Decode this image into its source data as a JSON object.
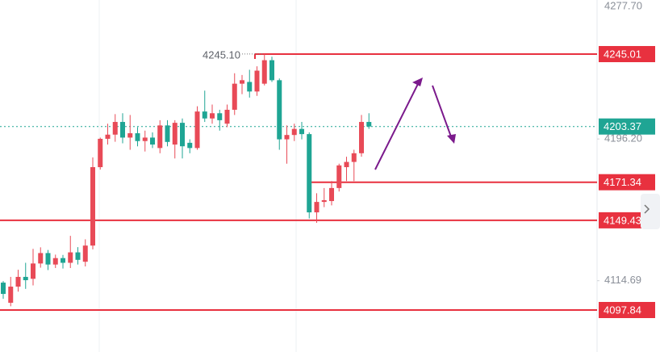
{
  "chart_data": {
    "type": "candlestick",
    "series": [
      {
        "up_color": "#e84a57",
        "down_color": "#1fa594",
        "open": [
          4113.6,
          4102.0,
          4111.3,
          4116.9,
          4115.8,
          4124.6,
          4130.6,
          4124.0,
          4127.7,
          4125.0,
          4131.0,
          4125.6,
          4134.9,
          4180.0,
          4196.3,
          4198.7,
          4206.0,
          4197.0,
          4199.5,
          4195.0,
          4197.0,
          4191.0,
          4204.0,
          4193.0,
          4205.5,
          4194.0,
          4191.0,
          4212.0,
          4208.0,
          4211.0,
          4205.0,
          4213.0,
          4228.0,
          4229.0,
          4223.5,
          4228.0,
          4241.5,
          4230.0,
          4196.0,
          4198.5,
          4202.0,
          4199.0,
          4154.0,
          4160.0,
          4160.5,
          4168.0,
          4180.0,
          4183.0,
          4188.0,
          4206.0
        ],
        "high": [
          4114.5,
          4116.9,
          4121.0,
          4125.0,
          4133.0,
          4133.9,
          4132.4,
          4129.7,
          4129.5,
          4140.5,
          4134.0,
          4138.5,
          4185.6,
          4197.0,
          4205.0,
          4210.5,
          4211.0,
          4210.0,
          4203.0,
          4201.0,
          4200.0,
          4207.0,
          4207.0,
          4207.0,
          4208.0,
          4196.0,
          4215.0,
          4224.0,
          4216.0,
          4213.0,
          4216.0,
          4234.0,
          4233.0,
          4236.0,
          4238.0,
          4245.1,
          4243.5,
          4231.0,
          4204.0,
          4205.0,
          4206.0,
          4200.0,
          4165.0,
          4168.0,
          4172.0,
          4182.0,
          4186.0,
          4190.0,
          4210.0,
          4211.0
        ],
        "low": [
          4104.3,
          4100.0,
          4108.4,
          4110.0,
          4112.0,
          4122.2,
          4120.8,
          4122.0,
          4121.7,
          4122.0,
          4124.0,
          4122.9,
          4132.7,
          4178.6,
          4193.0,
          4194.6,
          4193.7,
          4190.0,
          4192.0,
          4189.0,
          4191.0,
          4188.0,
          4192.0,
          4185.0,
          4185.0,
          4188.0,
          4190.0,
          4206.0,
          4205.0,
          4201.0,
          4203.0,
          4210.0,
          4222.0,
          4220.0,
          4221.0,
          4227.0,
          4229.0,
          4190.0,
          4182.0,
          4195.0,
          4196.0,
          4150.5,
          4148.0,
          4157.0,
          4158.0,
          4166.0,
          4172.0,
          4172.0,
          4186.0,
          4202.0
        ],
        "close": [
          4107.1,
          4111.3,
          4116.9,
          4115.0,
          4124.6,
          4130.6,
          4124.0,
          4127.7,
          4125.0,
          4131.0,
          4126.7,
          4134.9,
          4180.0,
          4196.3,
          4198.7,
          4206.0,
          4197.0,
          4199.5,
          4195.0,
          4197.0,
          4193.0,
          4204.0,
          4194.5,
          4205.5,
          4192.0,
          4191.0,
          4212.0,
          4208.0,
          4211.0,
          4207.0,
          4213.0,
          4228.0,
          4230.0,
          4223.5,
          4235.5,
          4241.5,
          4230.0,
          4196.0,
          4198.5,
          4202.0,
          4199.0,
          4154.0,
          4160.0,
          4161.0,
          4168.0,
          4181.0,
          4183.0,
          4188.0,
          4206.0,
          4203.37
        ]
      }
    ],
    "max_label": "4245.10",
    "ylim": [
      4073.7,
      4277.7
    ],
    "yticks": [
      {
        "value": 4277.7,
        "label": "4277.70"
      },
      {
        "value": 4196.2,
        "label": "4196.20"
      },
      4114.69
    ],
    "price_lines": [
      4245.01,
      4171.34,
      4149.43,
      4097.84
    ],
    "price_line_color": "#e8313f",
    "grid": true
  }
}
